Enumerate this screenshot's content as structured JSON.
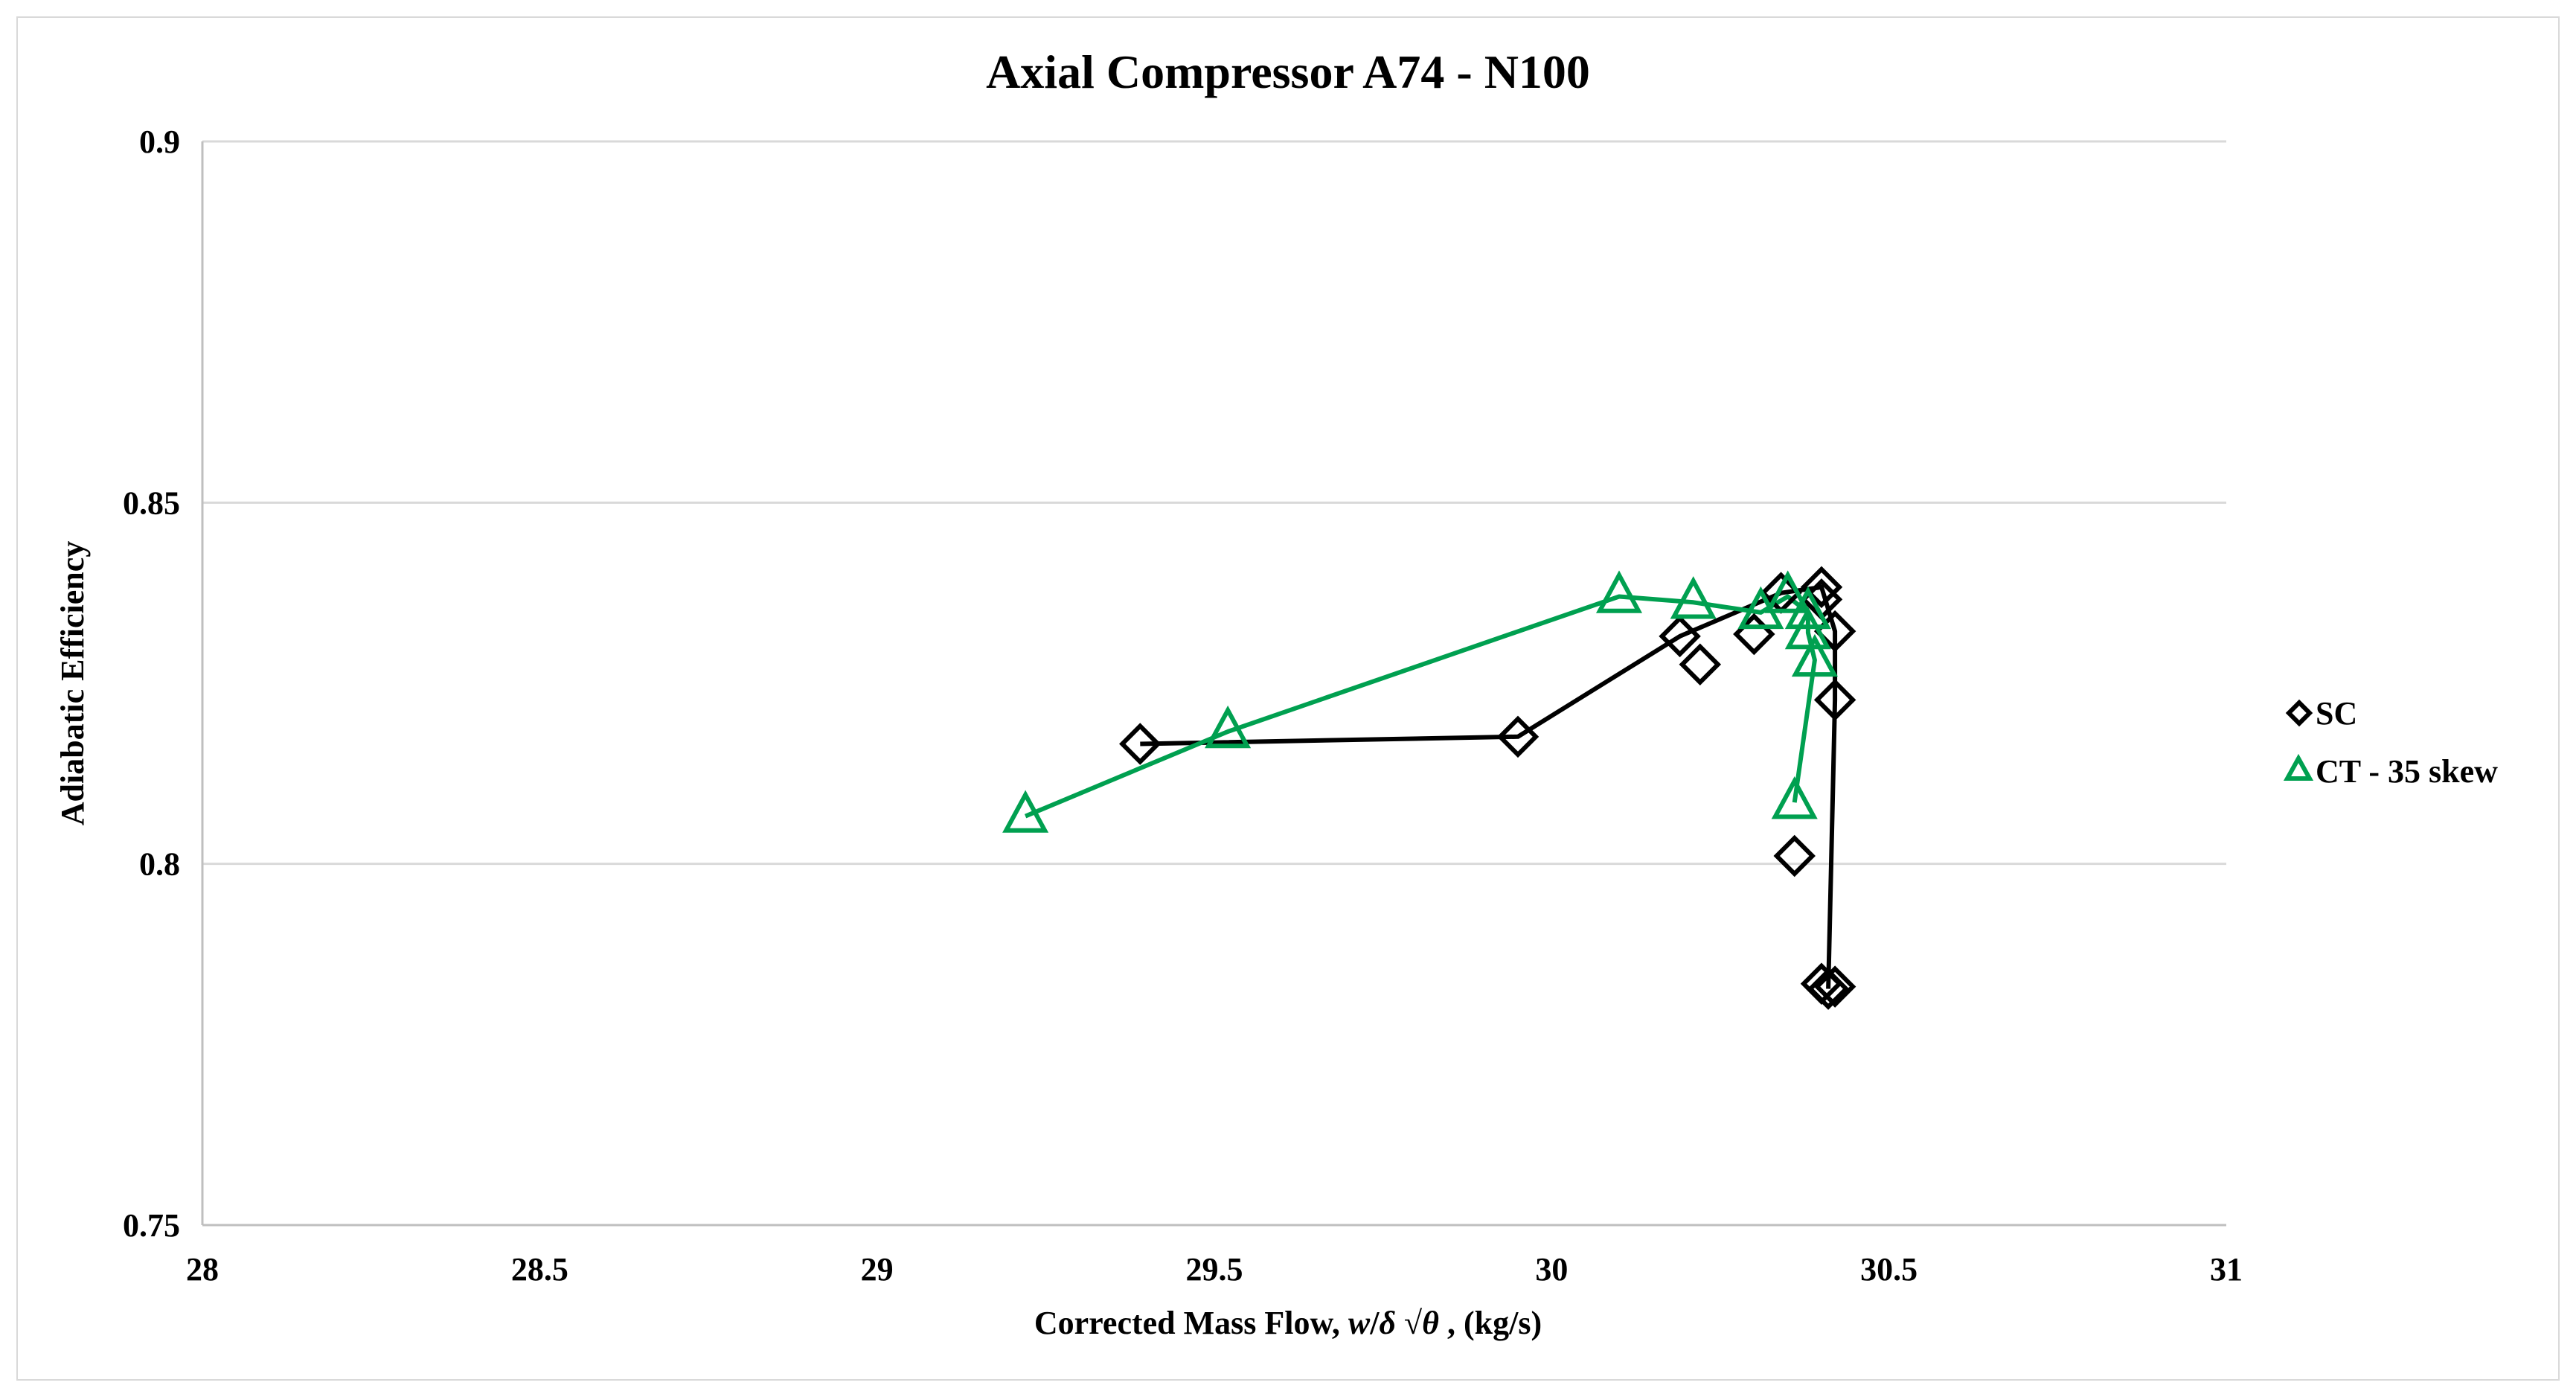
{
  "chart_data": {
    "type": "scatter",
    "title": "Axial Compressor A74 - N100",
    "xlabel": "Corrected Mass Flow, w/δ √θ , (kg/s)",
    "xlabel_parts": {
      "prefix": "Corrected Mass Flow, ",
      "italic_w": "w",
      "slash": "/",
      "italic_delta": "δ",
      "root": " √",
      "italic_theta": "θ",
      "suffix": " , (kg/s)"
    },
    "ylabel": "Adiabatic Efficiency",
    "xlim": [
      28,
      31
    ],
    "ylim": [
      0.75,
      0.9
    ],
    "x_ticks": [
      "28",
      "28.5",
      "29",
      "29.5",
      "30",
      "30.5",
      "31"
    ],
    "x_tick_values": [
      28,
      28.5,
      29,
      29.5,
      30,
      30.5,
      31
    ],
    "y_ticks": [
      "0.75",
      "0.8",
      "0.85",
      "0.9"
    ],
    "y_tick_values": [
      0.75,
      0.8,
      0.85,
      0.9
    ],
    "grid": "horizontal",
    "legend_position": "right",
    "series": [
      {
        "name": "SC",
        "marker": "diamond",
        "color": "#000000",
        "points": [
          [
            29.39,
            0.8166
          ],
          [
            29.95,
            0.8176
          ],
          [
            30.19,
            0.8315
          ],
          [
            30.22,
            0.8276
          ],
          [
            30.3,
            0.8318
          ],
          [
            30.34,
            0.8375
          ],
          [
            30.4,
            0.8383
          ],
          [
            30.4,
            0.8366
          ],
          [
            30.42,
            0.8322
          ],
          [
            30.42,
            0.8227
          ],
          [
            30.36,
            0.8011
          ],
          [
            30.41,
            0.7827
          ],
          [
            30.42,
            0.783
          ],
          [
            30.4,
            0.7834
          ]
        ],
        "line_order": [
          0,
          1,
          2,
          5,
          6,
          8,
          9,
          11
        ]
      },
      {
        "name": "CT - 35 skew",
        "marker": "triangle",
        "color": "#00a050",
        "points": [
          [
            29.22,
            0.8066
          ],
          [
            29.52,
            0.8183
          ],
          [
            30.1,
            0.837
          ],
          [
            30.21,
            0.8362
          ],
          [
            30.31,
            0.8348
          ],
          [
            30.35,
            0.837
          ],
          [
            30.38,
            0.8348
          ],
          [
            30.38,
            0.832
          ],
          [
            30.39,
            0.8282
          ],
          [
            30.36,
            0.8085
          ]
        ],
        "line_order": [
          0,
          1,
          2,
          3,
          4,
          5,
          6,
          7,
          8,
          9
        ]
      }
    ]
  }
}
